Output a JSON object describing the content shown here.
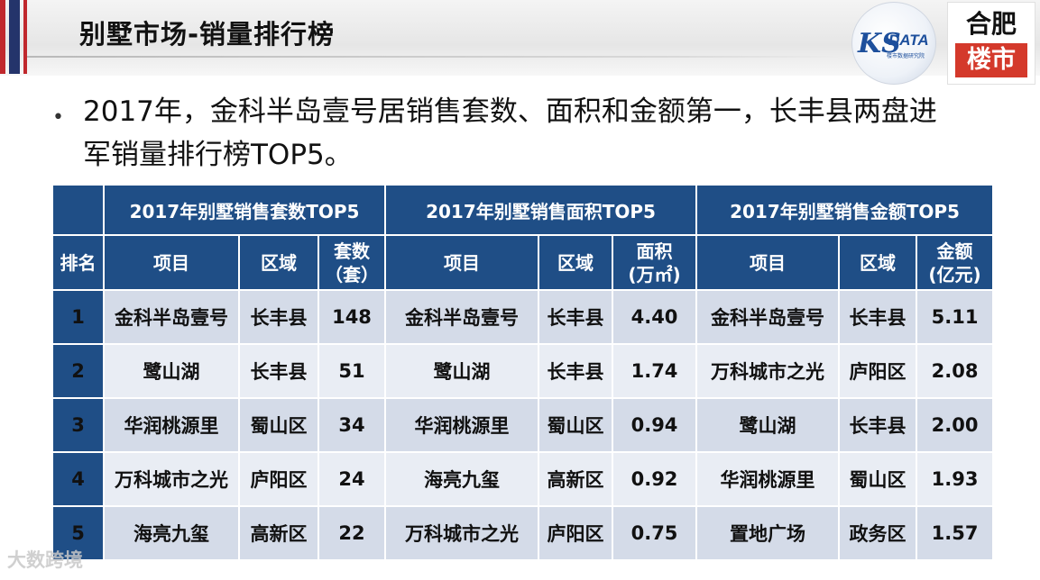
{
  "header": {
    "title": "别墅市场-销量排行榜",
    "logo_data": {
      "mark": "KS",
      "text": "DATA",
      "sub": "楼市数据研究院"
    },
    "logo_hf": {
      "top": "合肥",
      "bottom": "楼市"
    }
  },
  "bullet": {
    "line1": "2017年，金科半岛壹号居销售套数、面积和金额第一，长丰县两盘进",
    "line2": "军销量排行榜TOP5。"
  },
  "table": {
    "group_headers": [
      "2017年别墅销售套数TOP5",
      "2017年别墅销售面积TOP5",
      "2017年别墅销售金额TOP5"
    ],
    "col_rank": "排名",
    "col_project": "项目",
    "col_area": "区域",
    "col_units": [
      "套数",
      "（套）"
    ],
    "col_space": [
      "面积",
      "(万㎡)"
    ],
    "col_amount": [
      "金额",
      "(亿元)"
    ],
    "rows": [
      {
        "rank": "1",
        "p1": "金科半岛壹号",
        "a1": "长丰县",
        "v1": "148",
        "p2": "金科半岛壹号",
        "a2": "长丰县",
        "v2": "4.40",
        "p3": "金科半岛壹号",
        "a3": "长丰县",
        "v3": "5.11"
      },
      {
        "rank": "2",
        "p1": "鹭山湖",
        "a1": "长丰县",
        "v1": "51",
        "p2": "鹭山湖",
        "a2": "长丰县",
        "v2": "1.74",
        "p3": "万科城市之光",
        "a3": "庐阳区",
        "v3": "2.08"
      },
      {
        "rank": "3",
        "p1": "华润桃源里",
        "a1": "蜀山区",
        "v1": "34",
        "p2": "华润桃源里",
        "a2": "蜀山区",
        "v2": "0.94",
        "p3": "鹭山湖",
        "a3": "长丰县",
        "v3": "2.00"
      },
      {
        "rank": "4",
        "p1": "万科城市之光",
        "a1": "庐阳区",
        "v1": "24",
        "p2": "海亮九玺",
        "a2": "高新区",
        "v2": "0.92",
        "p3": "华润桃源里",
        "a3": "蜀山区",
        "v3": "1.93"
      },
      {
        "rank": "5",
        "p1": "海亮九玺",
        "a1": "高新区",
        "v1": "22",
        "p2": "万科城市之光",
        "a2": "庐阳区",
        "v2": "0.75",
        "p3": "置地广场",
        "a3": "政务区",
        "v3": "1.57"
      }
    ]
  },
  "watermark": "大数跨境"
}
